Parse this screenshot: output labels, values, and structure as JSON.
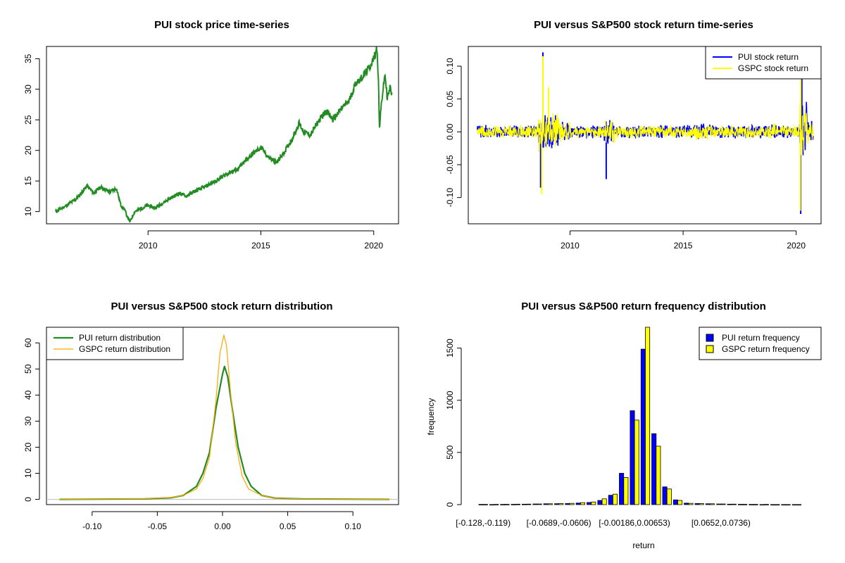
{
  "chart_data": [
    {
      "type": "line",
      "title": "PUI stock price time-series",
      "xlabel": "",
      "ylabel": "",
      "xlim": [
        2005.5,
        2021.1
      ],
      "ylim": [
        8.0,
        37.0
      ],
      "x_ticks": [
        2010,
        2015,
        2020
      ],
      "y_ticks": [
        10,
        15,
        20,
        25,
        30,
        35
      ],
      "color": "#228B22",
      "series": [
        {
          "points": [
            [
              2005.9,
              10.0
            ],
            [
              2006.3,
              10.8
            ],
            [
              2006.8,
              12.0
            ],
            [
              2007.3,
              14.2
            ],
            [
              2007.6,
              13.0
            ],
            [
              2007.9,
              14.0
            ],
            [
              2008.3,
              13.2
            ],
            [
              2008.6,
              13.8
            ],
            [
              2008.8,
              11.0
            ],
            [
              2008.95,
              10.4
            ],
            [
              2009.1,
              9.0
            ],
            [
              2009.2,
              8.3
            ],
            [
              2009.4,
              10.0
            ],
            [
              2009.7,
              10.5
            ],
            [
              2010.0,
              11.0
            ],
            [
              2010.3,
              10.6
            ],
            [
              2010.7,
              11.5
            ],
            [
              2011.0,
              12.2
            ],
            [
              2011.4,
              13.0
            ],
            [
              2011.7,
              12.5
            ],
            [
              2012.0,
              13.2
            ],
            [
              2012.5,
              14.0
            ],
            [
              2013.0,
              15.0
            ],
            [
              2013.5,
              16.2
            ],
            [
              2014.0,
              17.0
            ],
            [
              2014.5,
              19.0
            ],
            [
              2015.0,
              20.5
            ],
            [
              2015.3,
              19.0
            ],
            [
              2015.7,
              18.0
            ],
            [
              2016.0,
              19.5
            ],
            [
              2016.4,
              22.0
            ],
            [
              2016.7,
              24.5
            ],
            [
              2016.9,
              23.0
            ],
            [
              2017.2,
              22.5
            ],
            [
              2017.5,
              24.5
            ],
            [
              2017.9,
              26.5
            ],
            [
              2018.2,
              25.0
            ],
            [
              2018.6,
              27.0
            ],
            [
              2018.9,
              28.0
            ],
            [
              2019.2,
              31.0
            ],
            [
              2019.5,
              32.0
            ],
            [
              2019.8,
              33.5
            ],
            [
              2020.0,
              35.0
            ],
            [
              2020.15,
              36.8
            ],
            [
              2020.22,
              30.0
            ],
            [
              2020.25,
              23.5
            ],
            [
              2020.35,
              28.0
            ],
            [
              2020.5,
              32.5
            ],
            [
              2020.6,
              28.5
            ],
            [
              2020.75,
              30.5
            ],
            [
              2020.8,
              29.0
            ]
          ]
        }
      ]
    },
    {
      "type": "line",
      "title": "PUI versus S&P500 stock return time-series",
      "xlabel": "",
      "ylabel": "",
      "xlim": [
        2005.5,
        2021.1
      ],
      "ylim": [
        -0.14,
        0.13
      ],
      "x_ticks": [
        2010,
        2015,
        2020
      ],
      "y_ticks": [
        "0.10",
        "0.05",
        "0.00",
        "-0.05",
        "-0.10"
      ],
      "series": [
        {
          "name": "PUI stock return",
          "color": "#0000FF",
          "spikes": [
            [
              2008.8,
              0.121
            ],
            [
              2008.7,
              -0.085
            ],
            [
              2011.6,
              -0.072
            ],
            [
              2020.2,
              -0.125
            ],
            [
              2020.25,
              0.085
            ]
          ]
        },
        {
          "name": "GSPC stock return",
          "color": "#FFFF00",
          "spikes": [
            [
              2008.8,
              0.115
            ],
            [
              2008.75,
              -0.095
            ],
            [
              2009.05,
              0.068
            ],
            [
              2020.2,
              0.09
            ],
            [
              2020.18,
              -0.12
            ]
          ]
        }
      ],
      "legend": "top-right"
    },
    {
      "type": "line",
      "title": "PUI versus S&P500 stock return distribution",
      "xlabel": "",
      "ylabel": "",
      "xlim": [
        -0.135,
        0.135
      ],
      "ylim": [
        -2,
        66
      ],
      "x_ticks": [
        "-0.10",
        "-0.05",
        "0.00",
        "0.05",
        "0.10"
      ],
      "y_ticks": [
        0,
        10,
        20,
        30,
        40,
        50,
        60
      ],
      "series": [
        {
          "name": "PUI return distribution",
          "color": "#228B22",
          "points": [
            [
              -0.125,
              0
            ],
            [
              -0.06,
              0.2
            ],
            [
              -0.04,
              0.6
            ],
            [
              -0.03,
              1.5
            ],
            [
              -0.02,
              5
            ],
            [
              -0.015,
              10
            ],
            [
              -0.01,
              18
            ],
            [
              -0.005,
              35
            ],
            [
              0.0,
              48
            ],
            [
              0.0015,
              51
            ],
            [
              0.004,
              47
            ],
            [
              0.008,
              33
            ],
            [
              0.012,
              20
            ],
            [
              0.017,
              10
            ],
            [
              0.022,
              5
            ],
            [
              0.03,
              1.5
            ],
            [
              0.04,
              0.5
            ],
            [
              0.06,
              0.2
            ],
            [
              0.128,
              0
            ]
          ]
        },
        {
          "name": "GSPC return distribution",
          "color": "#FFA500",
          "points": [
            [
              -0.125,
              0
            ],
            [
              -0.06,
              0.3
            ],
            [
              -0.04,
              0.7
            ],
            [
              -0.03,
              1.5
            ],
            [
              -0.02,
              4
            ],
            [
              -0.015,
              8
            ],
            [
              -0.01,
              16
            ],
            [
              -0.005,
              38
            ],
            [
              -0.002,
              56
            ],
            [
              0.001,
              63
            ],
            [
              0.003,
              59
            ],
            [
              0.006,
              42
            ],
            [
              0.01,
              22
            ],
            [
              0.015,
              9
            ],
            [
              0.02,
              4
            ],
            [
              0.03,
              1.5
            ],
            [
              0.04,
              0.5
            ],
            [
              0.06,
              0.2
            ],
            [
              0.128,
              0
            ]
          ]
        }
      ],
      "legend": "top-left"
    },
    {
      "type": "bar",
      "title": "PUI versus S&P500 return frequency distribution",
      "xlabel": "return",
      "ylabel": "frequency",
      "ylim": [
        0,
        1700
      ],
      "y_ticks": [
        0,
        500,
        1000,
        1500
      ],
      "x_tick_labels": [
        "[-0.128,-0.119)",
        "[-0.0689,-0.0606)",
        "[-0.00186,0.00653)",
        "[0.0652,0.0736)"
      ],
      "x_tick_bins": [
        0,
        7,
        14,
        22
      ],
      "bin_count": 30,
      "series": [
        {
          "name": "PUI return frequency",
          "color": "#0000FF",
          "values": [
            2,
            1,
            2,
            3,
            4,
            6,
            8,
            9,
            10,
            15,
            20,
            40,
            90,
            300,
            900,
            1490,
            680,
            170,
            45,
            14,
            10,
            8,
            6,
            4,
            3,
            2,
            1,
            1,
            1,
            1
          ]
        },
        {
          "name": "GSPC return frequency",
          "color": "#FFFF00",
          "values": [
            2,
            2,
            3,
            4,
            5,
            6,
            8,
            10,
            12,
            18,
            25,
            55,
            100,
            260,
            810,
            1720,
            560,
            150,
            40,
            12,
            10,
            8,
            6,
            5,
            3,
            2,
            2,
            1,
            1,
            1
          ]
        }
      ],
      "legend": "top-right"
    }
  ]
}
